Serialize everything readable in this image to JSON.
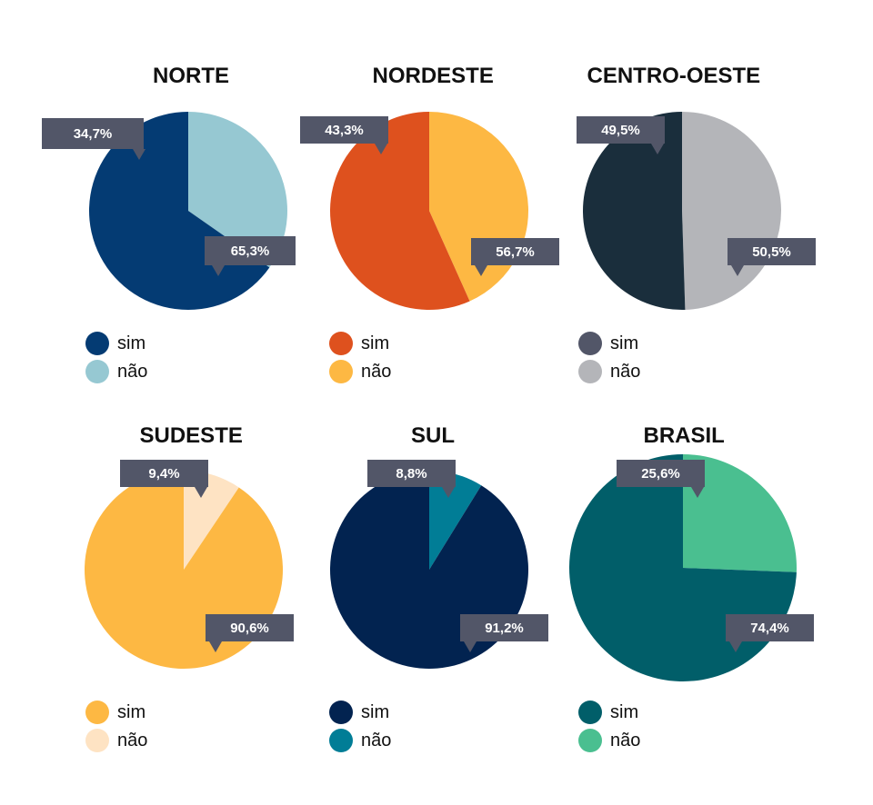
{
  "chart_data": [
    {
      "type": "pie",
      "title": "NORTE",
      "categories": [
        "sim",
        "não"
      ],
      "values": [
        65.3,
        34.7
      ],
      "labels": [
        "65,3%",
        "34,7%"
      ],
      "colors": [
        "#043b73",
        "#96c8d2"
      ]
    },
    {
      "type": "pie",
      "title": "NORDESTE",
      "categories": [
        "sim",
        "não"
      ],
      "values": [
        56.7,
        43.3
      ],
      "labels": [
        "56,7%",
        "43,3%"
      ],
      "colors": [
        "#de511e",
        "#fdb843"
      ]
    },
    {
      "type": "pie",
      "title": "CENTRO-OESTE",
      "categories": [
        "sim",
        "não"
      ],
      "values": [
        50.5,
        49.5
      ],
      "labels": [
        "50,5%",
        "49,5%"
      ],
      "colors": [
        "#1a2e3c",
        "#b4b5b9"
      ],
      "legend_colors": [
        "#525668",
        "#b4b5b9"
      ]
    },
    {
      "type": "pie",
      "title": "SUDESTE",
      "categories": [
        "sim",
        "não"
      ],
      "values": [
        90.6,
        9.4
      ],
      "labels": [
        "90,6%",
        "9,4%"
      ],
      "colors": [
        "#fdb843",
        "#fee3c3"
      ]
    },
    {
      "type": "pie",
      "title": "SUL",
      "categories": [
        "sim",
        "não"
      ],
      "values": [
        91.2,
        8.8
      ],
      "labels": [
        "91,2%",
        "8,8%"
      ],
      "colors": [
        "#022350",
        "#017d96"
      ]
    },
    {
      "type": "pie",
      "title": "BRASIL",
      "categories": [
        "sim",
        "não"
      ],
      "values": [
        74.4,
        25.6
      ],
      "labels": [
        "74,4%",
        "25,6%"
      ],
      "colors": [
        "#015e69",
        "#4abf90"
      ]
    }
  ]
}
